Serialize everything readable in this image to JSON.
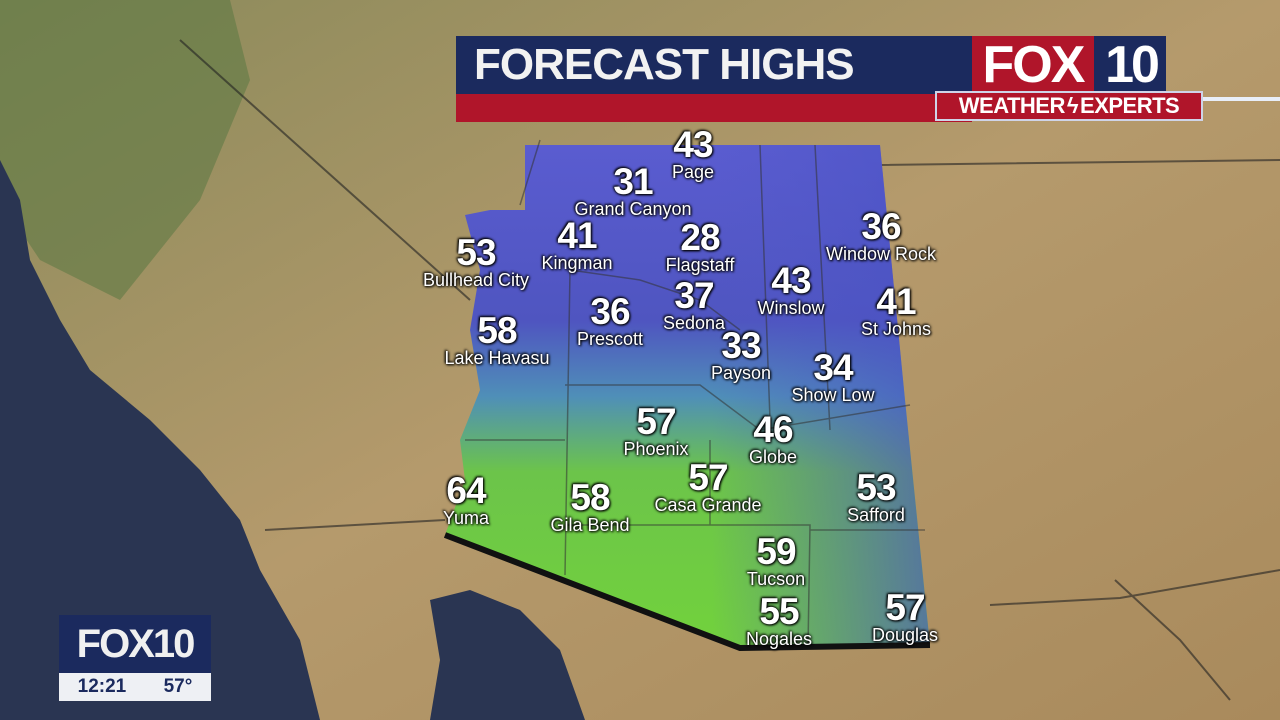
{
  "title": "FORECAST HIGHS",
  "logo": {
    "fox": "FOX",
    "number": "10",
    "tagline_left": "WEATHER",
    "tagline_right": "EXPERTS"
  },
  "bug": {
    "logo": "FOX10",
    "time": "12:21",
    "temp": "57°"
  },
  "colors": {
    "banner_blue": "#1b2a5e",
    "banner_red": "#b0152a",
    "cold": "#4a4fc4",
    "warm": "#6fd13a"
  },
  "cities": [
    {
      "name": "Page",
      "high": "43"
    },
    {
      "name": "Grand Canyon",
      "high": "31"
    },
    {
      "name": "Kingman",
      "high": "41"
    },
    {
      "name": "Flagstaff",
      "high": "28"
    },
    {
      "name": "Bullhead City",
      "high": "53"
    },
    {
      "name": "Window Rock",
      "high": "36"
    },
    {
      "name": "Winslow",
      "high": "43"
    },
    {
      "name": "St Johns",
      "high": "41"
    },
    {
      "name": "Lake Havasu",
      "high": "58"
    },
    {
      "name": "Prescott",
      "high": "36"
    },
    {
      "name": "Sedona",
      "high": "37"
    },
    {
      "name": "Payson",
      "high": "33"
    },
    {
      "name": "Show Low",
      "high": "34"
    },
    {
      "name": "Phoenix",
      "high": "57"
    },
    {
      "name": "Globe",
      "high": "46"
    },
    {
      "name": "Casa Grande",
      "high": "57"
    },
    {
      "name": "Safford",
      "high": "53"
    },
    {
      "name": "Yuma",
      "high": "64"
    },
    {
      "name": "Gila Bend",
      "high": "58"
    },
    {
      "name": "Tucson",
      "high": "59"
    },
    {
      "name": "Nogales",
      "high": "55"
    },
    {
      "name": "Douglas",
      "high": "57"
    }
  ]
}
